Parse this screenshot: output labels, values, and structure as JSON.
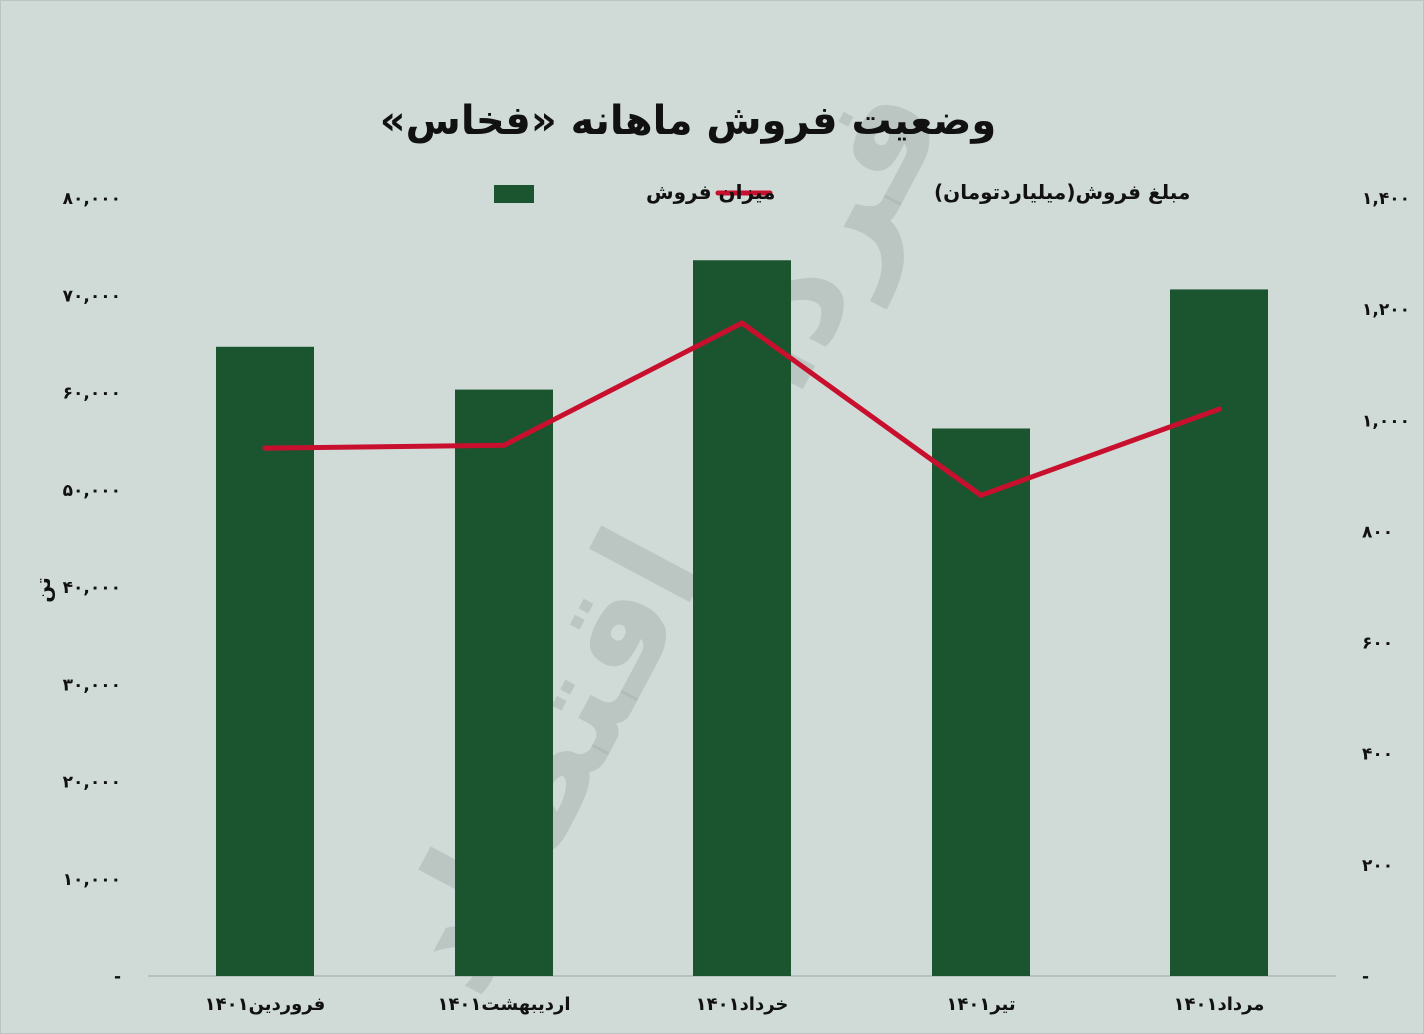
{
  "chart_data": {
    "type": "bar",
    "title": "وضعیت فروش ماهانه «فخاس»",
    "categories": [
      "فروردین۱۴۰۱",
      "اردیبهشت۱۴۰۱",
      "خرداد۱۴۰۱",
      "تیر۱۴۰۱",
      "مرداد۱۴۰۱"
    ],
    "series": [
      {
        "name": "میزان فروش",
        "type": "bar",
        "axis": "left",
        "color": "#1b5530",
        "values": [
          64700,
          60300,
          73600,
          56300,
          70600
        ]
      },
      {
        "name": "مبلغ فروش(میلیاردتومان)",
        "type": "line",
        "axis": "right",
        "color": "#c8102e",
        "values": [
          950,
          955,
          1175,
          865,
          1020
        ]
      }
    ],
    "y_left": {
      "label": "تن",
      "range": [
        0,
        80000
      ],
      "ticks": [
        "-",
        "۱۰,۰۰۰",
        "۲۰,۰۰۰",
        "۳۰,۰۰۰",
        "۴۰,۰۰۰",
        "۵۰,۰۰۰",
        "۶۰,۰۰۰",
        "۷۰,۰۰۰",
        "۸۰,۰۰۰"
      ]
    },
    "y_right": {
      "label": "",
      "range": [
        0,
        1400
      ],
      "ticks": [
        "-",
        "۲۰۰",
        "۴۰۰",
        "۶۰۰",
        "۸۰۰",
        "۱,۰۰۰",
        "۱,۲۰۰",
        "۱,۴۰۰"
      ]
    },
    "legend_position": "top-center",
    "grid": false
  },
  "watermark_text": "فردای اقتصاد"
}
